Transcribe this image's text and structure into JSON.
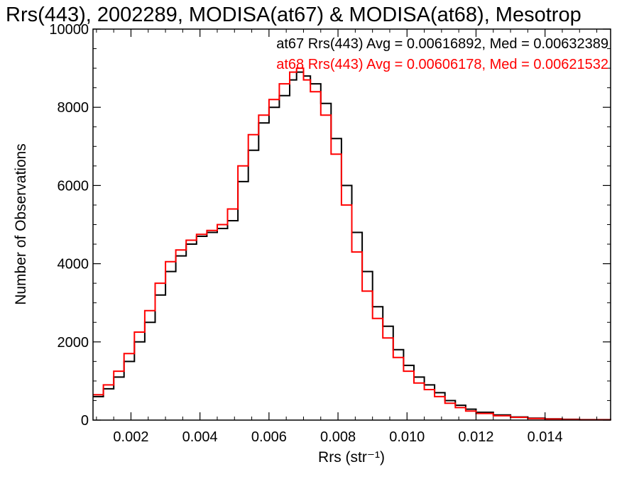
{
  "chart_data": {
    "type": "line",
    "title": "Rrs(443), 2002289, MODISA(at67) & MODISA(at68), Mesotrop",
    "xlabel": "Rrs (str⁻¹)",
    "ylabel": "Number of Observations",
    "xlim": [
      0.0009,
      0.0159
    ],
    "ylim": [
      0,
      10000
    ],
    "x_ticks": [
      0.002,
      0.004,
      0.006,
      0.008,
      0.01,
      0.012,
      0.014
    ],
    "x_tick_labels": [
      "0.002",
      "0.004",
      "0.006",
      "0.008",
      "0.010",
      "0.012",
      "0.014"
    ],
    "y_ticks": [
      0,
      2000,
      4000,
      6000,
      8000,
      10000
    ],
    "y_tick_labels": [
      "0",
      "2000",
      "4000",
      "6000",
      "8000",
      "10000"
    ],
    "grid": false,
    "legend_placement": "top-right",
    "series": [
      {
        "name": "at67 Rrs(443) Avg = 0.00616892, Med = 0.00632389",
        "color": "#000000",
        "x": [
          0.0009,
          0.0012,
          0.0015,
          0.0018,
          0.0021,
          0.0024,
          0.0027,
          0.003,
          0.0033,
          0.0036,
          0.0039,
          0.0042,
          0.0045,
          0.0048,
          0.0051,
          0.0054,
          0.0057,
          0.006,
          0.0063,
          0.0066,
          0.0068,
          0.007,
          0.0072,
          0.0075,
          0.0078,
          0.0081,
          0.0084,
          0.0087,
          0.009,
          0.0093,
          0.0096,
          0.0099,
          0.0102,
          0.0105,
          0.0108,
          0.0111,
          0.0114,
          0.0117,
          0.012,
          0.0125,
          0.013,
          0.0135,
          0.014,
          0.0145,
          0.015,
          0.0159
        ],
        "y": [
          600,
          800,
          1100,
          1500,
          2000,
          2500,
          3200,
          3800,
          4200,
          4500,
          4700,
          4800,
          4900,
          5100,
          6100,
          6900,
          7600,
          8000,
          8300,
          8700,
          8900,
          8800,
          8600,
          8100,
          7200,
          6000,
          4800,
          3800,
          2900,
          2400,
          1800,
          1400,
          1100,
          900,
          700,
          500,
          380,
          280,
          200,
          130,
          80,
          50,
          30,
          20,
          10,
          5
        ]
      },
      {
        "name": "at68 Rrs(443) Avg = 0.00606178, Med = 0.00621532",
        "color": "#ff0000",
        "x": [
          0.0009,
          0.0012,
          0.0015,
          0.0018,
          0.0021,
          0.0024,
          0.0027,
          0.003,
          0.0033,
          0.0036,
          0.0039,
          0.0042,
          0.0045,
          0.0048,
          0.0051,
          0.0054,
          0.0057,
          0.006,
          0.0063,
          0.0066,
          0.0068,
          0.007,
          0.0072,
          0.0075,
          0.0078,
          0.0081,
          0.0084,
          0.0087,
          0.009,
          0.0093,
          0.0096,
          0.0099,
          0.0102,
          0.0105,
          0.0108,
          0.0111,
          0.0114,
          0.0117,
          0.012,
          0.0125,
          0.013,
          0.0135,
          0.014,
          0.0145,
          0.015,
          0.0159
        ],
        "y": [
          650,
          900,
          1250,
          1700,
          2250,
          2800,
          3500,
          4050,
          4350,
          4600,
          4750,
          4850,
          5000,
          5400,
          6500,
          7300,
          7800,
          8200,
          8600,
          8900,
          9000,
          8700,
          8400,
          7800,
          6800,
          5500,
          4300,
          3300,
          2600,
          2100,
          1600,
          1250,
          950,
          780,
          600,
          430,
          320,
          230,
          170,
          110,
          70,
          40,
          25,
          15,
          8,
          4
        ]
      }
    ]
  }
}
